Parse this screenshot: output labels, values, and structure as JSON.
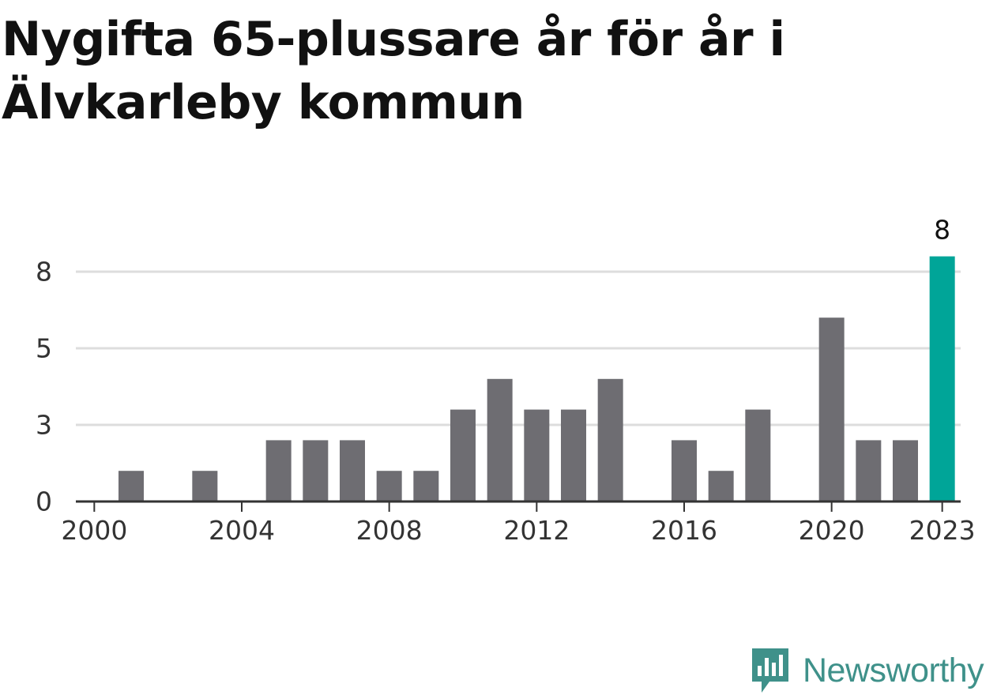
{
  "title": "Nygifta 65-plussare år för år i Älvkarleby kommun",
  "brand": {
    "name": "Newsworthy",
    "logo_icon": "newsworthy-bar-chart-icon",
    "color": "#3f918a"
  },
  "chart_data": {
    "type": "bar",
    "categories": [
      "2000",
      "2001",
      "2002",
      "2003",
      "2004",
      "2005",
      "2006",
      "2007",
      "2008",
      "2009",
      "2010",
      "2011",
      "2012",
      "2013",
      "2014",
      "2015",
      "2016",
      "2017",
      "2018",
      "2019",
      "2020",
      "2021",
      "2022",
      "2023"
    ],
    "values": [
      0,
      1,
      0,
      1,
      0,
      2,
      2,
      2,
      1,
      1,
      3,
      4,
      3,
      3,
      4,
      0,
      2,
      1,
      3,
      0,
      6,
      2,
      2,
      8
    ],
    "xticks": [
      "2000",
      "2004",
      "2008",
      "2012",
      "2016",
      "2020",
      "2023"
    ],
    "yticks": [
      "0",
      "3",
      "5",
      "8"
    ],
    "ytick_values": [
      0,
      2.5,
      5,
      7.5
    ],
    "ylim": [
      0,
      7.5
    ],
    "grid": true,
    "highlight": {
      "category": "2023",
      "label": "8"
    },
    "colors": {
      "bar": "#6e6d72",
      "highlight": "#00a598",
      "grid": "#dddddd",
      "axis": "#333333",
      "text": "#333333"
    },
    "xlabel": "",
    "ylabel": ""
  }
}
